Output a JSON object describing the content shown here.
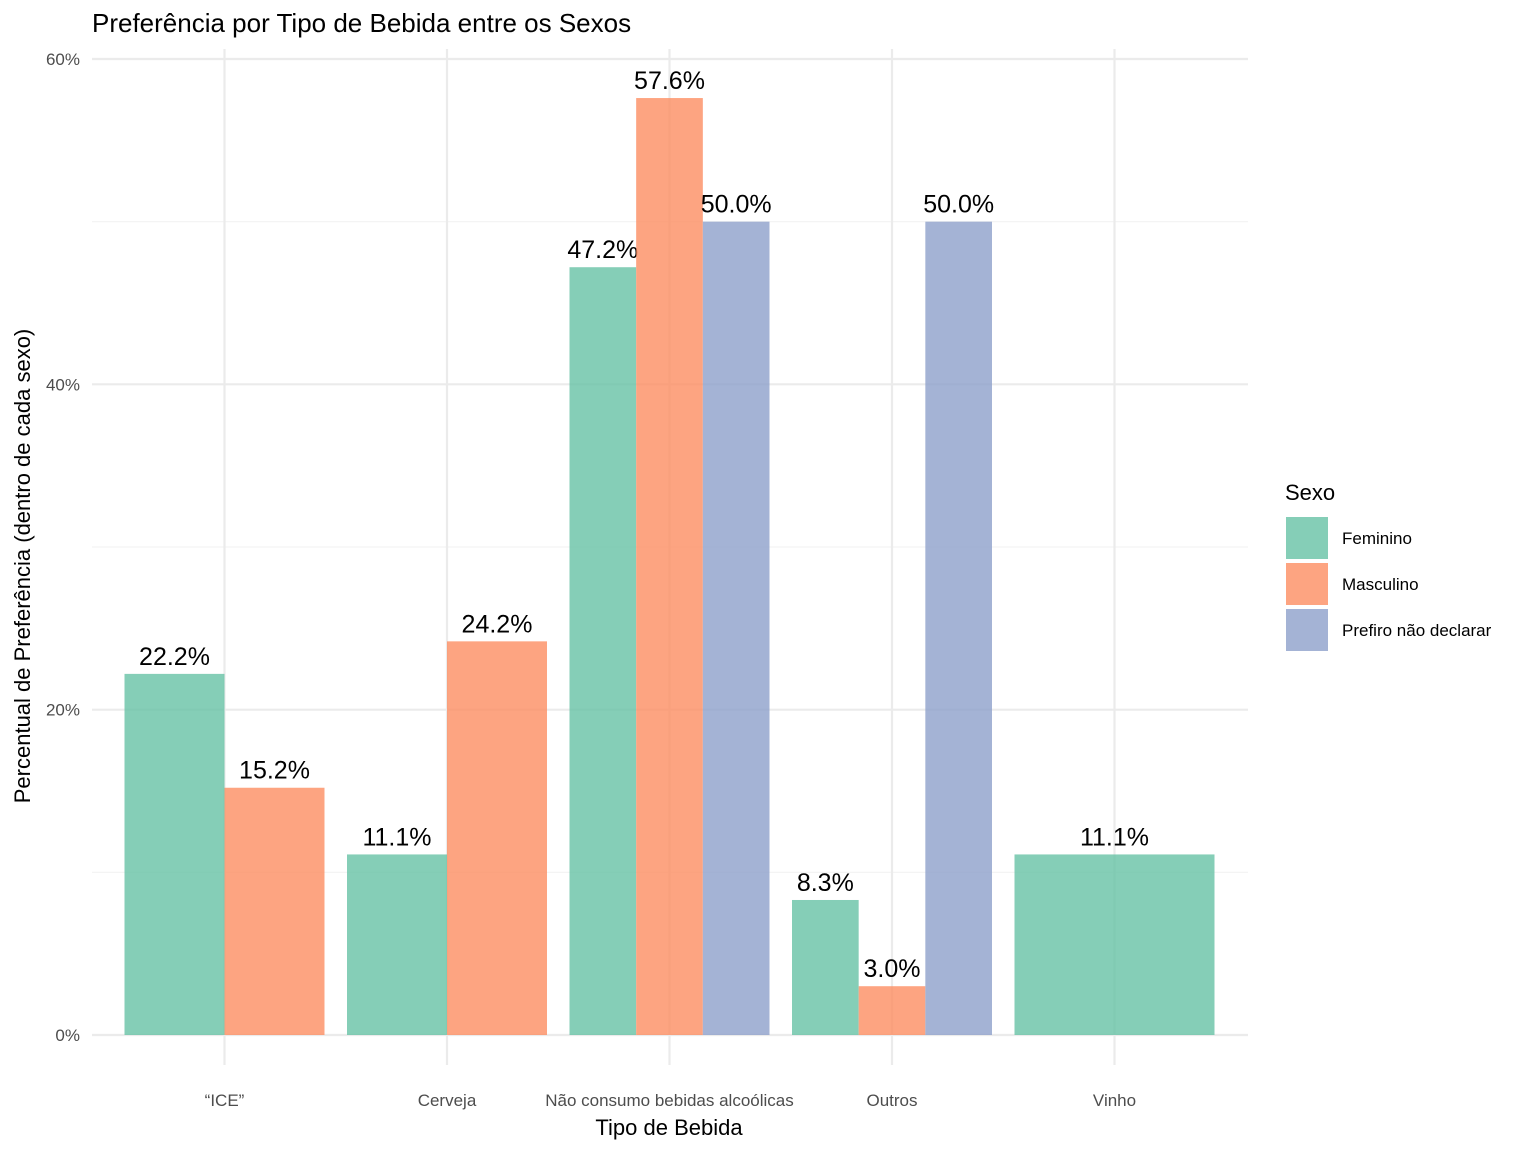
{
  "chart_data": {
    "type": "bar",
    "title": "Preferência por Tipo de Bebida entre os Sexos",
    "xlabel": "Tipo de Bebida",
    "ylabel": "Percentual de Preferência (dentro de cada sexo)",
    "categories": [
      "“ICE”",
      "Cerveja",
      "Não consumo bebidas alcoólicas",
      "Outros",
      "Vinho"
    ],
    "ylim": [
      0,
      60
    ],
    "yticks": [
      0,
      20,
      40,
      60
    ],
    "ytick_labels": [
      "0%",
      "20%",
      "40%",
      "60%"
    ],
    "grid": true,
    "legend": {
      "title": "Sexo",
      "position": "right"
    },
    "series": [
      {
        "name": "Feminino",
        "color": "#66c2a5",
        "values": [
          22.2,
          11.1,
          47.2,
          8.3,
          11.1
        ],
        "labels": [
          "22.2%",
          "11.1%",
          "47.2%",
          "8.3%",
          "11.1%"
        ]
      },
      {
        "name": "Masculino",
        "color": "#fc8d62",
        "values": [
          15.2,
          24.2,
          57.6,
          3.0,
          null
        ],
        "labels": [
          "15.2%",
          "24.2%",
          "57.6%",
          "3.0%",
          null
        ]
      },
      {
        "name": "Prefiro não declarar",
        "color": "#8da0cb",
        "values": [
          null,
          null,
          50.0,
          50.0,
          null
        ],
        "labels": [
          null,
          null,
          "50.0%",
          "50.0%",
          null
        ]
      }
    ]
  }
}
